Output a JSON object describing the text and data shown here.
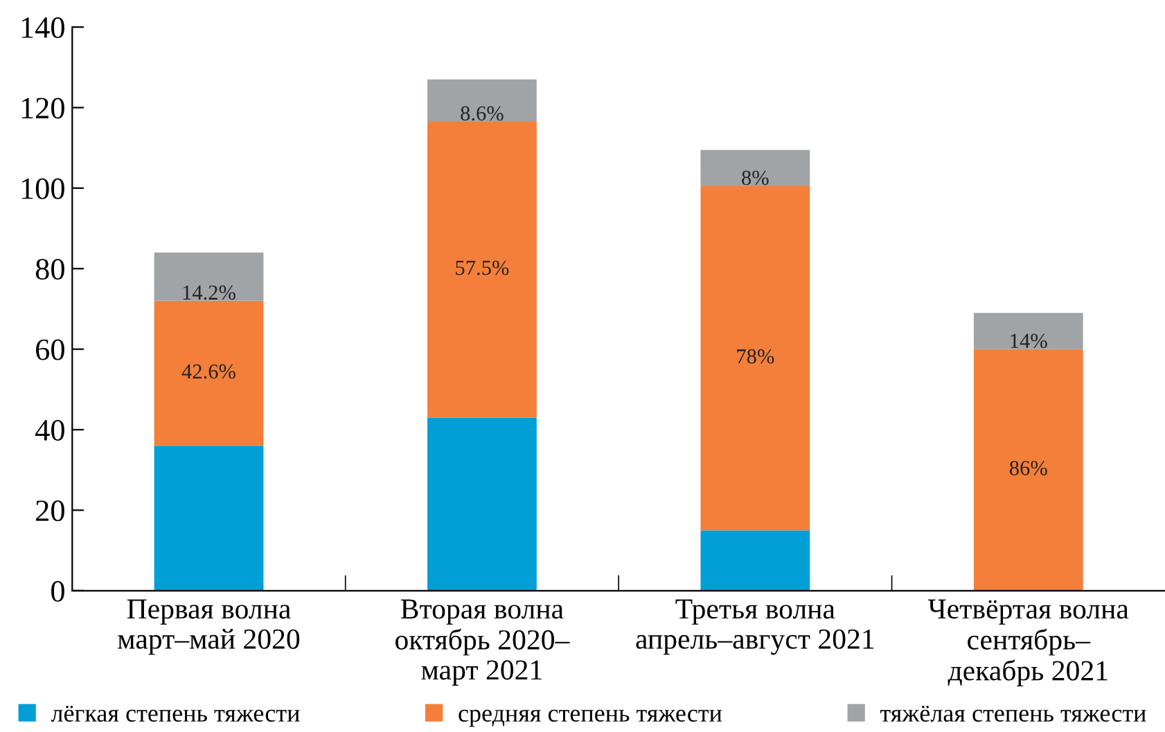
{
  "chart_data": {
    "type": "bar",
    "stacked": true,
    "categories": [
      "Первая волна\nмарт–май 2020",
      "Вторая волна\nоктябрь 2020–\nмарт 2021",
      "Третья волна\nапрель–август 2021",
      "Четвёртая волна\nсентябрь–\nдекабрь 2021"
    ],
    "series": [
      {
        "name": "лёгкая степень тяжести",
        "color": "#009fd6",
        "values": [
          36,
          43,
          15,
          0
        ]
      },
      {
        "name": "средняя степень тяжести",
        "color": "#f47f3a",
        "values": [
          36,
          73.5,
          85.5,
          60
        ]
      },
      {
        "name": "тяжёлая степень тяжести",
        "color": "#a0a4a7",
        "values": [
          12,
          10.5,
          9,
          9
        ]
      }
    ],
    "annotations": [
      "42.6%",
      "14.2%",
      "57.5%",
      "8.6%",
      "78%",
      "8%",
      "86%",
      "14%"
    ],
    "ylim": [
      0,
      140
    ],
    "yticks": [
      0,
      20,
      40,
      60,
      80,
      100,
      120,
      140
    ],
    "grid": false,
    "legend": "bottom"
  }
}
